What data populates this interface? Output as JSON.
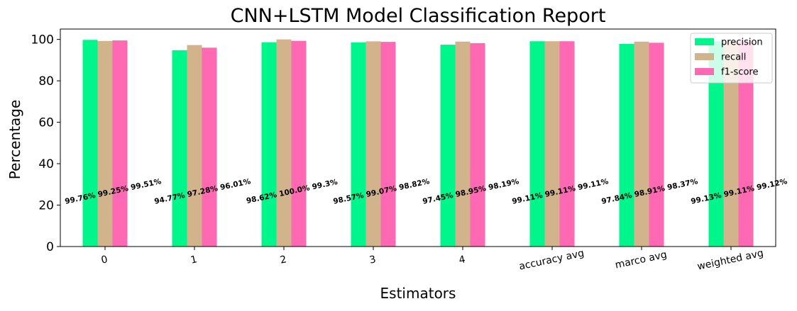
{
  "chart_data": {
    "type": "bar",
    "title": "CNN+LSTM Model Classification Report",
    "xlabel": "Estimators",
    "ylabel": "Percentage",
    "ylim": [
      0,
      105
    ],
    "yticks": [
      0,
      20,
      40,
      60,
      80,
      100
    ],
    "grid": false,
    "legend_position": "top-right",
    "categories": [
      "0",
      "1",
      "2",
      "3",
      "4",
      "accuracy avg",
      "marco avg",
      "weighted avg"
    ],
    "series": [
      {
        "name": "precision",
        "color": "#00F58A",
        "values": [
          99.76,
          94.77,
          98.62,
          98.57,
          97.45,
          99.11,
          97.84,
          99.13
        ]
      },
      {
        "name": "recall",
        "color": "#D2B48C",
        "values": [
          99.25,
          97.28,
          100.0,
          99.07,
          98.95,
          99.11,
          98.91,
          99.11
        ]
      },
      {
        "name": "f1-score",
        "color": "#FF69B4",
        "values": [
          99.51,
          96.01,
          99.3,
          98.82,
          98.19,
          99.11,
          98.37,
          99.12
        ]
      }
    ],
    "annotations": [
      "99.76% 99.25% 99.51%",
      "94.77% 97.28% 96.01%",
      "98.62% 100.0% 99.3%",
      "98.57% 99.07% 98.82%",
      "97.45% 98.95% 98.19%",
      "99.11% 99.11% 99.11%",
      "97.84% 98.91% 98.37%",
      "99.13% 99.11% 99.12%"
    ]
  }
}
